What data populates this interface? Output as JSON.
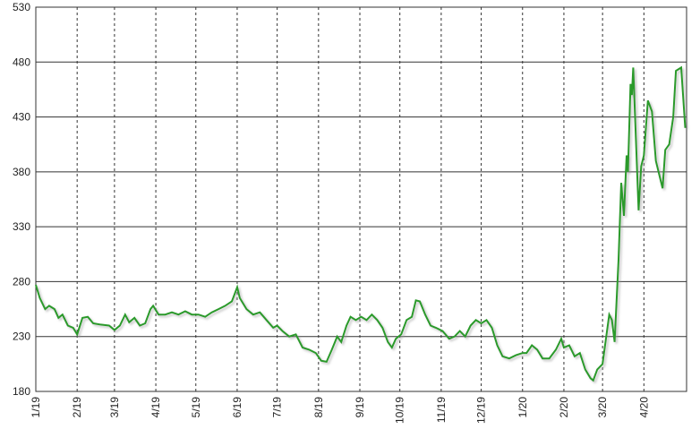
{
  "chart_data": {
    "type": "line",
    "x": [
      0,
      3,
      7,
      10,
      14,
      17,
      20,
      24,
      28,
      31,
      35,
      39,
      43,
      48,
      55,
      59,
      63,
      67,
      70,
      74,
      78,
      82,
      86,
      88,
      92,
      97,
      102,
      107,
      112,
      117,
      122,
      127,
      132,
      137,
      142,
      147,
      151,
      153,
      158,
      163,
      168,
      173,
      178,
      181,
      185,
      190,
      195,
      200,
      205,
      210,
      214,
      218,
      222,
      226,
      229,
      233,
      236,
      240,
      244,
      248,
      252,
      256,
      260,
      264,
      267,
      270,
      274,
      278,
      282,
      285,
      288,
      292,
      296,
      300,
      305,
      310,
      314,
      318,
      322,
      326,
      330,
      334,
      338,
      342,
      346,
      350,
      355,
      360,
      365,
      368,
      372,
      376,
      380,
      385,
      390,
      394,
      396,
      400,
      404,
      408,
      412,
      416,
      418,
      421,
      425,
      430,
      432,
      434,
      437,
      439,
      441,
      443,
      444,
      446,
      447,
      448,
      452,
      454,
      456,
      459,
      462,
      465,
      467,
      470,
      472,
      475,
      478,
      480,
      484,
      487
    ],
    "series": [
      {
        "color": "#2a9a2a",
        "values": [
          277,
          265,
          255,
          258,
          255,
          247,
          250,
          240,
          238,
          232,
          247,
          248,
          242,
          241,
          240,
          236,
          240,
          250,
          243,
          247,
          240,
          242,
          255,
          258,
          250,
          250,
          252,
          250,
          253,
          250,
          250,
          248,
          252,
          255,
          258,
          262,
          275,
          265,
          255,
          250,
          252,
          245,
          238,
          240,
          235,
          230,
          232,
          220,
          218,
          215,
          208,
          207,
          218,
          230,
          225,
          240,
          248,
          245,
          248,
          245,
          250,
          245,
          238,
          225,
          220,
          228,
          232,
          245,
          248,
          263,
          262,
          250,
          240,
          238,
          235,
          228,
          230,
          235,
          230,
          240,
          245,
          242,
          245,
          238,
          222,
          212,
          210,
          213,
          215,
          215,
          222,
          218,
          210,
          210,
          218,
          228,
          220,
          222,
          212,
          215,
          200,
          192,
          190,
          200,
          205,
          250,
          245,
          225,
          300,
          370,
          340,
          395,
          380,
          460,
          450,
          475,
          345,
          385,
          395,
          445,
          435,
          390,
          380,
          365,
          400,
          405,
          430,
          472,
          475,
          420
        ]
      }
    ],
    "xlim": [
      0,
      488
    ],
    "xticks": [
      {
        "value": 0,
        "label": "1/19"
      },
      {
        "value": 31,
        "label": "2/19"
      },
      {
        "value": 59,
        "label": "3/19"
      },
      {
        "value": 90,
        "label": "4/19"
      },
      {
        "value": 120,
        "label": "5/19"
      },
      {
        "value": 151,
        "label": "6/19"
      },
      {
        "value": 181,
        "label": "7/19"
      },
      {
        "value": 212,
        "label": "8/19"
      },
      {
        "value": 243,
        "label": "9/19"
      },
      {
        "value": 273,
        "label": "10/19"
      },
      {
        "value": 304,
        "label": "11/19"
      },
      {
        "value": 334,
        "label": "12/19"
      },
      {
        "value": 365,
        "label": "1/20"
      },
      {
        "value": 396,
        "label": "2/20"
      },
      {
        "value": 425,
        "label": "3/20"
      },
      {
        "value": 456,
        "label": "4/20"
      }
    ],
    "ylim": [
      180,
      530
    ],
    "yticks": [
      180,
      230,
      280,
      330,
      380,
      430,
      480,
      530
    ],
    "grid": true
  }
}
